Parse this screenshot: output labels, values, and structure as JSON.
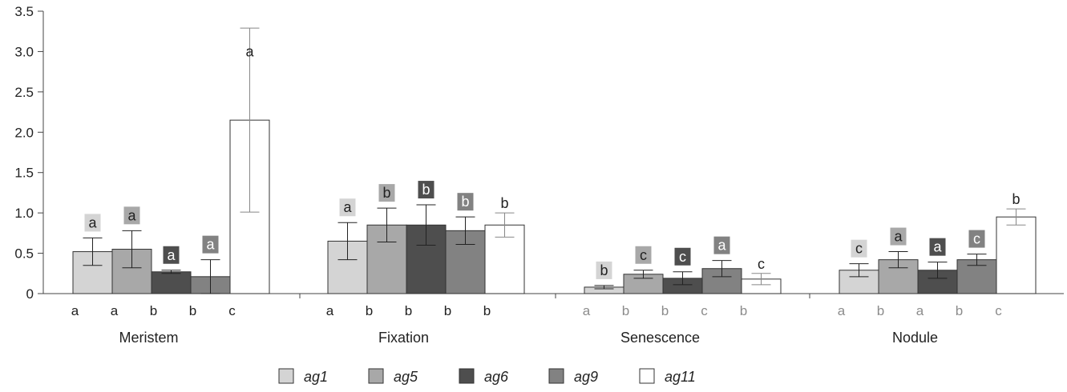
{
  "chart_data": {
    "type": "bar",
    "ylim": [
      0,
      3.5
    ],
    "yticks": [
      "0",
      "0.5",
      "1.0",
      "1.5",
      "2.0",
      "2.5",
      "3.0",
      "3.5"
    ],
    "ytick_values": [
      0,
      0.5,
      1.0,
      1.5,
      2.0,
      2.5,
      3.0,
      3.5
    ],
    "categories": [
      "Meristem",
      "Fixation",
      "Senescence",
      "Nodule"
    ],
    "grid": false,
    "legend_position": "bottom",
    "series": [
      {
        "name": "ag1",
        "color": "#d4d4d4",
        "values": [
          0.52,
          0.65,
          0.08,
          0.29
        ],
        "errors": [
          0.17,
          0.23,
          0.02,
          0.08
        ],
        "box_letters": [
          "a",
          "a",
          "b",
          "c"
        ],
        "axis_letters": [
          "a",
          "a",
          "a",
          "a"
        ]
      },
      {
        "name": "ag5",
        "color": "#a8a8a8",
        "values": [
          0.55,
          0.85,
          0.24,
          0.42
        ],
        "errors": [
          0.23,
          0.21,
          0.05,
          0.1
        ],
        "box_letters": [
          "a",
          "b",
          "c",
          "a"
        ],
        "axis_letters": [
          "a",
          "b",
          "b",
          "b"
        ]
      },
      {
        "name": "ag6",
        "color": "#4e4e4e",
        "values": [
          0.27,
          0.85,
          0.19,
          0.29
        ],
        "errors": [
          0.02,
          0.25,
          0.08,
          0.1
        ],
        "box_letters": [
          "a",
          "b",
          "c",
          "a"
        ],
        "axis_letters": [
          "b",
          "b",
          "b",
          "a"
        ]
      },
      {
        "name": "ag9",
        "color": "#828282",
        "values": [
          0.21,
          0.78,
          0.31,
          0.42
        ],
        "errors": [
          0.21,
          0.17,
          0.1,
          0.07
        ],
        "box_letters": [
          "a",
          "b",
          "a",
          "c"
        ],
        "axis_letters": [
          "b",
          "b",
          "c",
          "b"
        ]
      },
      {
        "name": "ag11",
        "color": "#ffffff",
        "values": [
          2.15,
          0.85,
          0.18,
          0.95
        ],
        "errors": [
          1.14,
          0.15,
          0.07,
          0.1
        ],
        "box_letters": [
          "a",
          "b",
          "c",
          "b"
        ],
        "axis_letters": [
          "c",
          "b",
          "b",
          "c"
        ]
      }
    ]
  }
}
